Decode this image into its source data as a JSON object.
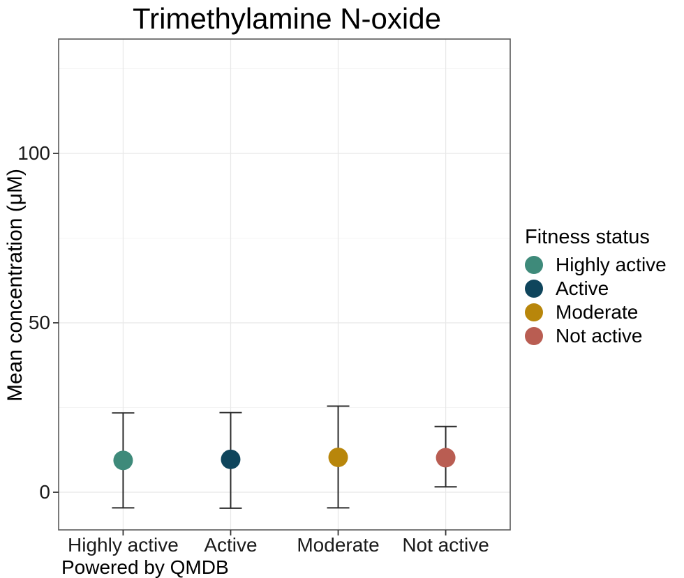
{
  "chart_data": {
    "type": "scatter",
    "style": "pointrange-errorbar",
    "title": "Trimethylamine N-oxide",
    "ylabel": "Mean concentration (μM)",
    "xlabel": "",
    "caption": "Powered by QMDB",
    "legend": {
      "title": "Fitness status",
      "position": "right"
    },
    "categories": [
      "Highly active",
      "Active",
      "Moderate",
      "Not active"
    ],
    "y_ticks": [
      0,
      50,
      100
    ],
    "y_minor_gridlines": [
      25,
      75,
      125
    ],
    "ylim": [
      -11,
      133
    ],
    "grid": true,
    "series": [
      {
        "name": "Highly active",
        "color": "#3e8a7a",
        "mean": 9.4,
        "lower": -4.6,
        "upper": 23.4
      },
      {
        "name": "Active",
        "color": "#0f455c",
        "mean": 9.7,
        "lower": -4.7,
        "upper": 23.5
      },
      {
        "name": "Moderate",
        "color": "#b8860b",
        "mean": 10.3,
        "lower": -4.6,
        "upper": 25.4
      },
      {
        "name": "Not active",
        "color": "#b95d52",
        "mean": 10.2,
        "lower": 1.6,
        "upper": 19.4
      }
    ],
    "colors": {
      "panel_border": "#595959",
      "grid_major": "#e8e8e8",
      "grid_minor": "#f4f4f4",
      "errorbar": "#2b2b2b",
      "tick": "#333333",
      "text": "#000000",
      "background": "#ffffff"
    }
  }
}
